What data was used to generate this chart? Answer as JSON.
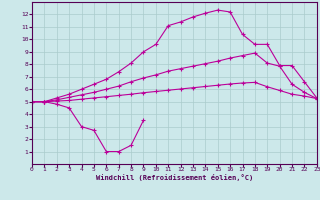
{
  "background_color": "#cce8ea",
  "grid_color": "#aacccc",
  "line_color": "#bb0099",
  "xlim": [
    0,
    23
  ],
  "ylim": [
    0,
    13
  ],
  "xticks": [
    0,
    1,
    2,
    3,
    4,
    5,
    6,
    7,
    8,
    9,
    10,
    11,
    12,
    13,
    14,
    15,
    16,
    17,
    18,
    19,
    20,
    21,
    22,
    23
  ],
  "yticks": [
    1,
    2,
    3,
    4,
    5,
    6,
    7,
    8,
    9,
    10,
    11,
    12
  ],
  "xlabel": "Windchill (Refroidissement éolien,°C)",
  "line1_x": [
    0,
    1,
    2,
    3,
    4,
    5,
    6,
    7,
    8,
    9
  ],
  "line1_y": [
    5.0,
    5.0,
    4.8,
    4.5,
    3.0,
    2.7,
    1.0,
    1.0,
    1.5,
    3.5
  ],
  "line2_x": [
    0,
    1,
    2,
    3,
    4,
    5,
    6,
    7,
    8,
    9,
    10,
    11,
    12,
    13,
    14,
    15,
    16,
    17,
    18,
    19,
    20,
    21,
    22,
    23
  ],
  "line2_y": [
    5.0,
    5.0,
    5.3,
    5.6,
    6.0,
    6.4,
    6.8,
    7.4,
    8.1,
    9.0,
    9.6,
    11.1,
    11.4,
    11.8,
    12.1,
    12.35,
    12.2,
    10.4,
    9.6,
    9.6,
    7.9,
    7.9,
    6.6,
    5.3
  ],
  "line3_x": [
    0,
    1,
    2,
    3,
    4,
    5,
    6,
    7,
    8,
    9,
    10,
    11,
    12,
    13,
    14,
    15,
    16,
    17,
    18,
    19,
    20,
    21,
    22,
    23
  ],
  "line3_y": [
    5.0,
    5.0,
    5.15,
    5.35,
    5.55,
    5.75,
    6.0,
    6.25,
    6.6,
    6.9,
    7.15,
    7.45,
    7.65,
    7.85,
    8.05,
    8.25,
    8.5,
    8.7,
    8.9,
    8.1,
    7.85,
    6.4,
    5.75,
    5.25
  ],
  "line4_x": [
    0,
    1,
    2,
    3,
    4,
    5,
    6,
    7,
    8,
    9,
    10,
    11,
    12,
    13,
    14,
    15,
    16,
    17,
    18,
    19,
    20,
    21,
    22,
    23
  ],
  "line4_y": [
    5.0,
    5.0,
    5.05,
    5.1,
    5.2,
    5.3,
    5.4,
    5.5,
    5.6,
    5.72,
    5.82,
    5.92,
    6.02,
    6.12,
    6.22,
    6.32,
    6.42,
    6.5,
    6.55,
    6.2,
    5.9,
    5.6,
    5.45,
    5.25
  ]
}
